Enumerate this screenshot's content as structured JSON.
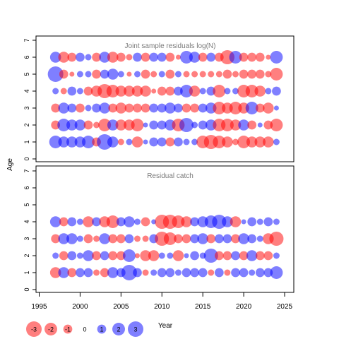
{
  "chart_data": [
    {
      "type": "scatter",
      "title": "Joint sample residuals log(N)",
      "xlabel": "",
      "ylabel": "Age",
      "xlim": [
        1995,
        2025
      ],
      "ylim": [
        0,
        7
      ],
      "yticks": [
        0,
        1,
        2,
        3,
        4,
        5,
        6,
        7
      ],
      "x": [
        1997,
        1998,
        1999,
        2000,
        2001,
        2002,
        2003,
        2004,
        2005,
        2006,
        2007,
        2008,
        2009,
        2010,
        2011,
        2012,
        2013,
        2014,
        2015,
        2016,
        2017,
        2018,
        2019,
        2020,
        2021,
        2022,
        2023,
        2024
      ],
      "ages": [
        1,
        2,
        3,
        4,
        5,
        6
      ],
      "residuals": {
        "1": [
          2,
          1.5,
          1.5,
          1.5,
          2,
          -1,
          3,
          1.5,
          -0.5,
          0.5,
          -1.5,
          0.3,
          1,
          1,
          -1,
          1,
          0.5,
          0.5,
          -2,
          -2.5,
          -2,
          -1.5,
          -0.5,
          -2,
          -1.5,
          -1.5,
          -1.5,
          0.5
        ],
        "2": [
          -1,
          2,
          1.5,
          1.5,
          -1,
          -0.5,
          -2,
          1.5,
          -1.5,
          -1.5,
          -2,
          0.3,
          1,
          1,
          1.5,
          -2,
          2.5,
          0.5,
          1,
          1.5,
          -2,
          -2,
          -1.5,
          1.5,
          -1,
          0.3,
          -1,
          -2
        ],
        "3": [
          -1,
          1.5,
          1,
          -1,
          0.5,
          1,
          1.5,
          -1,
          -1.5,
          -1,
          -1,
          -1,
          1,
          1,
          1.5,
          1,
          -1,
          -1,
          1,
          1.5,
          -2,
          -1.5,
          -2,
          -1.5,
          2,
          -1,
          -1.5,
          0.3
        ],
        "4": [
          0.5,
          -0.5,
          1,
          0.5,
          -1,
          -1.5,
          -2.5,
          -2,
          -1.5,
          -1.5,
          -1.5,
          -1.5,
          -0.3,
          -1,
          -1,
          1,
          2,
          -1.5,
          0.5,
          1,
          -2,
          0.5,
          0.5,
          -2,
          -2,
          -1.5,
          0.5,
          1
        ],
        "5": [
          3,
          -1,
          -0.3,
          0.5,
          0.5,
          -1,
          1,
          1.5,
          0.5,
          -0.3,
          0.5,
          -1,
          -0.5,
          0.5,
          -1,
          0.5,
          -0.5,
          -0.5,
          -0.5,
          -0.5,
          -0.5,
          -1,
          -0.5,
          -1,
          -1,
          -1,
          -0.5,
          -2
        ],
        "6": [
          1.5,
          -1.5,
          -1,
          1,
          0.5,
          -1,
          1.5,
          -1.5,
          -1,
          -0.5,
          1,
          -1,
          1,
          1,
          -1,
          -0.3,
          2,
          1.5,
          -1,
          1,
          -1,
          -2.5,
          2,
          -1,
          -1,
          -1,
          -0.3,
          2
        ]
      }
    },
    {
      "type": "scatter",
      "title": "Residual catch",
      "xlabel": "Year",
      "ylabel": "",
      "xlim": [
        1995,
        2025
      ],
      "ylim": [
        0,
        7
      ],
      "yticks": [
        0,
        1,
        2,
        3,
        4,
        5,
        6,
        7
      ],
      "xticks": [
        1995,
        2000,
        2005,
        2010,
        2015,
        2020,
        2025
      ],
      "x": [
        1997,
        1998,
        1999,
        2000,
        2001,
        2002,
        2003,
        2004,
        2005,
        2006,
        2007,
        2008,
        2009,
        2010,
        2011,
        2012,
        2013,
        2014,
        2015,
        2016,
        2017,
        2018,
        2019,
        2020,
        2021,
        2022,
        2023,
        2024
      ],
      "ages": [
        1,
        2,
        3,
        4
      ],
      "residuals": {
        "1": [
          -1.5,
          1.5,
          -1,
          1,
          1,
          -0.5,
          -1,
          1.5,
          1,
          3,
          1,
          -0.5,
          0.5,
          1,
          1,
          0.5,
          1,
          1,
          1,
          -0.5,
          1,
          -0.5,
          1,
          1,
          0.5,
          1,
          1,
          2
        ],
        "2": [
          0.5,
          -1,
          1,
          0.5,
          1.5,
          -1,
          1,
          -1,
          -1,
          2,
          -0.3,
          -1.5,
          -1.5,
          0.5,
          0.5,
          -1.5,
          0.3,
          1,
          0.5,
          2.5,
          -1,
          -1,
          1,
          -1,
          1.5,
          -1,
          -1,
          0.5
        ],
        "3": [
          -1,
          1.5,
          1.5,
          0.5,
          -1,
          -0.5,
          1.5,
          -1,
          -1,
          1,
          -0.5,
          -0.5,
          1,
          -2.5,
          -2,
          -1,
          -1,
          1,
          1.5,
          -1,
          1,
          1,
          -1,
          1.5,
          1,
          0.5,
          -1.5,
          -2.5
        ],
        "4": [
          1.5,
          -1,
          1,
          0.5,
          -1.5,
          1,
          -1.5,
          -2,
          1,
          1.5,
          0.5,
          -1,
          0.3,
          -2.5,
          -2.5,
          -2,
          -1.5,
          1,
          1.5,
          2,
          2.5,
          1.5,
          -1.5,
          0.3,
          1,
          0.5,
          1,
          0.5
        ]
      }
    }
  ],
  "legend": {
    "values": [
      -3,
      -2,
      -1,
      0,
      1,
      2,
      3
    ],
    "labels": [
      "-3",
      "-2",
      "-1",
      "0",
      "1",
      "2",
      "3"
    ]
  },
  "colors": {
    "positive": "#0000ff",
    "negative": "#ff0000"
  }
}
